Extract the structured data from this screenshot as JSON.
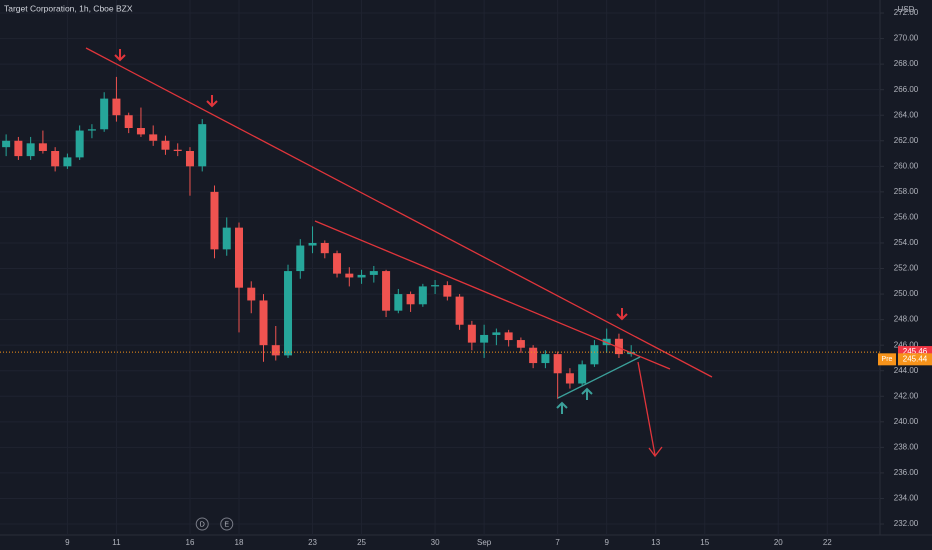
{
  "chart_data": {
    "type": "candlestick",
    "title": "Target Corporation, 1h, Cboe BZX",
    "y_unit": "USD",
    "up_color": "#26a69a",
    "down_color": "#ef5350",
    "x": [
      0,
      1,
      2,
      3,
      4,
      5,
      6,
      7,
      8,
      9,
      10,
      11,
      12,
      13,
      14,
      15,
      16,
      17,
      18,
      19,
      20,
      21,
      22,
      23,
      24,
      25,
      26,
      27,
      28,
      29,
      30,
      31,
      32,
      33,
      34,
      35,
      36,
      37,
      38,
      39,
      40,
      41,
      42,
      43,
      44,
      45,
      46,
      47,
      48,
      49,
      50,
      51
    ],
    "open": [
      261.5,
      262.0,
      260.8,
      261.8,
      261.2,
      260.0,
      260.7,
      262.8,
      262.9,
      265.3,
      264.0,
      263.0,
      262.5,
      262.0,
      261.3,
      261.2,
      260.0,
      258.0,
      253.5,
      255.2,
      250.5,
      249.5,
      246.0,
      245.2,
      251.8,
      253.8,
      254.0,
      253.2,
      251.6,
      251.3,
      251.5,
      251.8,
      248.7,
      250.0,
      249.2,
      250.6,
      250.7,
      249.8,
      247.6,
      246.2,
      246.8,
      247.0,
      246.4,
      245.8,
      244.6,
      245.3,
      243.8,
      243.0,
      244.5,
      246.0,
      246.5,
      245.3
    ],
    "high": [
      262.5,
      262.3,
      262.3,
      262.8,
      261.5,
      261.0,
      263.2,
      263.3,
      265.8,
      267.0,
      264.2,
      264.6,
      263.2,
      262.4,
      261.8,
      261.5,
      263.7,
      258.5,
      256.0,
      255.6,
      251.0,
      250.0,
      247.5,
      252.3,
      254.3,
      255.3,
      254.2,
      253.4,
      252.1,
      251.9,
      252.2,
      251.9,
      250.4,
      250.2,
      250.8,
      251.1,
      251.0,
      250.0,
      247.9,
      247.6,
      247.3,
      247.2,
      246.6,
      246.0,
      245.6,
      245.5,
      244.2,
      244.8,
      246.4,
      247.3,
      246.9,
      246.0
    ],
    "low": [
      260.8,
      260.5,
      260.5,
      261.0,
      259.6,
      259.8,
      260.5,
      262.2,
      262.7,
      263.5,
      262.6,
      262.3,
      261.6,
      260.9,
      260.8,
      257.7,
      259.6,
      252.8,
      253.0,
      247.0,
      248.5,
      244.7,
      244.8,
      245.0,
      251.2,
      253.2,
      252.8,
      251.3,
      250.6,
      250.8,
      250.9,
      248.2,
      248.5,
      248.6,
      249.0,
      250.0,
      249.5,
      247.2,
      245.6,
      245.0,
      246.0,
      245.9,
      245.4,
      244.2,
      244.2,
      241.8,
      242.6,
      242.8,
      244.3,
      245.4,
      245.0,
      245.1
    ],
    "close": [
      262.0,
      260.8,
      261.8,
      261.2,
      260.0,
      260.7,
      262.8,
      262.9,
      265.3,
      264.0,
      263.0,
      262.5,
      262.0,
      261.3,
      261.2,
      260.0,
      263.3,
      253.5,
      255.2,
      250.5,
      249.5,
      246.0,
      245.2,
      251.8,
      253.8,
      254.0,
      253.2,
      251.6,
      251.3,
      251.5,
      251.8,
      248.7,
      250.0,
      249.2,
      250.6,
      250.7,
      249.8,
      247.6,
      246.2,
      246.8,
      247.0,
      246.4,
      245.8,
      244.6,
      245.3,
      243.8,
      243.0,
      244.5,
      246.0,
      246.5,
      245.3,
      245.46
    ],
    "last_price": 245.46,
    "pre_label": "Pre",
    "pre_price": 245.44,
    "xlim": [
      -0.5,
      71.3
    ],
    "xticks": [
      {
        "value": 5,
        "label": "9"
      },
      {
        "value": 9,
        "label": "11"
      },
      {
        "value": 15,
        "label": "16"
      },
      {
        "value": 19,
        "label": "18"
      },
      {
        "value": 25,
        "label": "23"
      },
      {
        "value": 29,
        "label": "25"
      },
      {
        "value": 35,
        "label": "30"
      },
      {
        "value": 39,
        "label": "Sep"
      },
      {
        "value": 45,
        "label": "7"
      },
      {
        "value": 49,
        "label": "9"
      },
      {
        "value": 53,
        "label": "13"
      },
      {
        "value": 57,
        "label": "15"
      },
      {
        "value": 63,
        "label": "20"
      },
      {
        "value": 67,
        "label": "22"
      }
    ],
    "ylim": [
      231.14,
      273.02
    ],
    "yticks": [
      {
        "value": 232,
        "label": "232.00"
      },
      {
        "value": 234,
        "label": "234.00"
      },
      {
        "value": 236,
        "label": "236.00"
      },
      {
        "value": 238,
        "label": "238.00"
      },
      {
        "value": 240,
        "label": "240.00"
      },
      {
        "value": 242,
        "label": "242.00"
      },
      {
        "value": 244,
        "label": "244.00"
      },
      {
        "value": 246,
        "label": "246.00"
      },
      {
        "value": 248,
        "label": "248.00"
      },
      {
        "value": 250,
        "label": "250.00"
      },
      {
        "value": 252,
        "label": "252.00"
      },
      {
        "value": 254,
        "label": "254.00"
      },
      {
        "value": 256,
        "label": "256.00"
      },
      {
        "value": 258,
        "label": "258.00"
      },
      {
        "value": 260,
        "label": "260.00"
      },
      {
        "value": 262,
        "label": "262.00"
      },
      {
        "value": 264,
        "label": "264.00"
      },
      {
        "value": 266,
        "label": "266.00"
      },
      {
        "value": 268,
        "label": "268.00"
      },
      {
        "value": 270,
        "label": "270.00"
      },
      {
        "value": 272,
        "label": "272.00"
      }
    ],
    "events": [
      {
        "value": 16,
        "label": "D"
      },
      {
        "value": 18,
        "label": "E"
      }
    ]
  }
}
